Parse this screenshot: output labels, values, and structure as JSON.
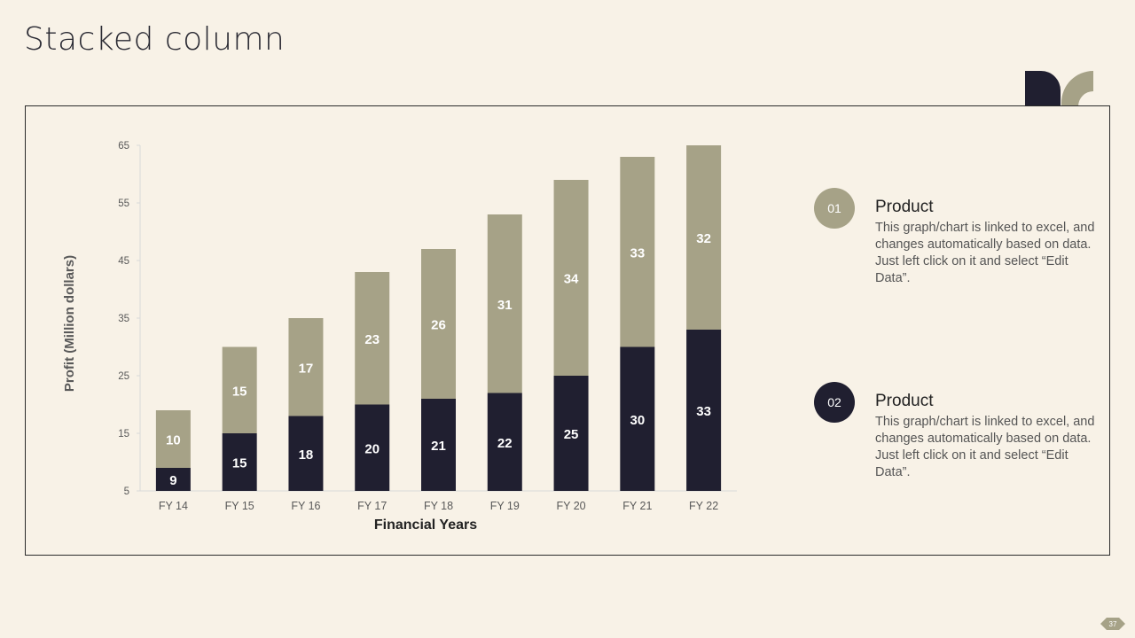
{
  "slide": {
    "title": "Stacked column",
    "page_number": "37"
  },
  "legend": [
    {
      "badge": "01",
      "title": "Product",
      "description": "This graph/chart is linked to excel, and changes automatically based on data. Just left click on it and select “Edit Data”.",
      "color": "#a6a287"
    },
    {
      "badge": "02",
      "title": "Product",
      "description": "This graph/chart is linked to excel, and changes automatically based on data. Just left click on it and select “Edit Data”.",
      "color": "#201f30"
    }
  ],
  "chart_data": {
    "type": "bar",
    "stacked": true,
    "categories": [
      "FY 14",
      "FY 15",
      "FY 16",
      "FY 17",
      "FY 18",
      "FY 19",
      "FY 20",
      "FY 21",
      "FY 22"
    ],
    "series": [
      {
        "values": [
          9,
          15,
          18,
          20,
          21,
          22,
          25,
          30,
          33
        ],
        "color": "#201f30"
      },
      {
        "values": [
          10,
          15,
          17,
          23,
          26,
          31,
          34,
          33,
          32
        ],
        "color": "#a6a287"
      }
    ],
    "xlabel": "Financial Years",
    "ylabel": "Profit (Million dollars)",
    "ylim": [
      5,
      65
    ],
    "yticks": [
      5,
      15,
      25,
      35,
      45,
      55,
      65
    ],
    "grid": false,
    "data_labels": true
  }
}
